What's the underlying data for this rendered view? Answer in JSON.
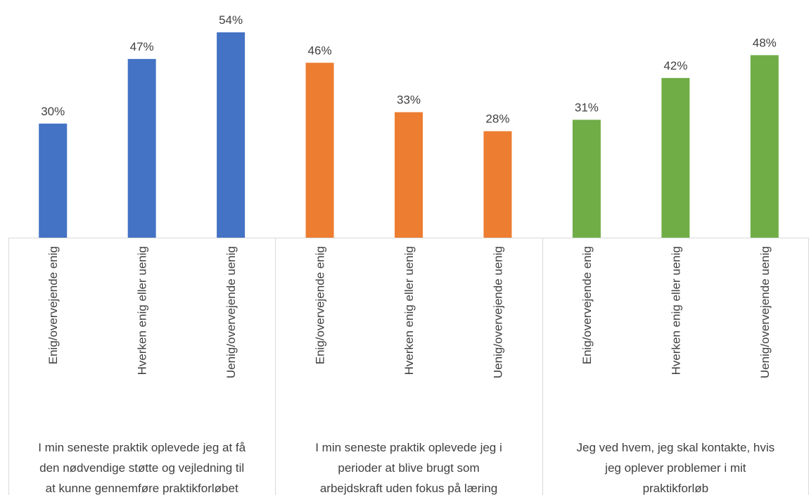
{
  "chart_data": {
    "type": "bar",
    "title": "",
    "xlabel": "",
    "ylabel": "",
    "ylim": [
      0,
      56
    ],
    "value_suffix": "%",
    "grid": false,
    "legend": "none",
    "groups": [
      {
        "label_lines": [
          "I min seneste praktik oplevede jeg at få",
          "den nødvendige støtte og vejledning til",
          "at kunne gennemføre praktikforløbet"
        ],
        "color": "#4472C4",
        "categories": [
          "Enig/overvejende enig",
          "Hverken enig eller uenig",
          "Uenig/overvejende uenig"
        ],
        "values": [
          30,
          47,
          54
        ]
      },
      {
        "label_lines": [
          "I min seneste praktik oplevede jeg i",
          "perioder at blive brugt som",
          "arbejdskraft uden fokus på læring"
        ],
        "color": "#ED7D31",
        "categories": [
          "Enig/overvejende enig",
          "Hverken enig eller uenig",
          "Uenig/overvejende uenig"
        ],
        "values": [
          46,
          33,
          28
        ]
      },
      {
        "label_lines": [
          "Jeg ved hvem, jeg skal kontakte, hvis",
          "jeg oplever problemer i mit",
          "praktikforløb"
        ],
        "color": "#70AD47",
        "categories": [
          "Enig/overvejende enig",
          "Hverken enig eller uenig",
          "Uenig/overvejende uenig"
        ],
        "values": [
          31,
          42,
          48
        ]
      }
    ]
  }
}
